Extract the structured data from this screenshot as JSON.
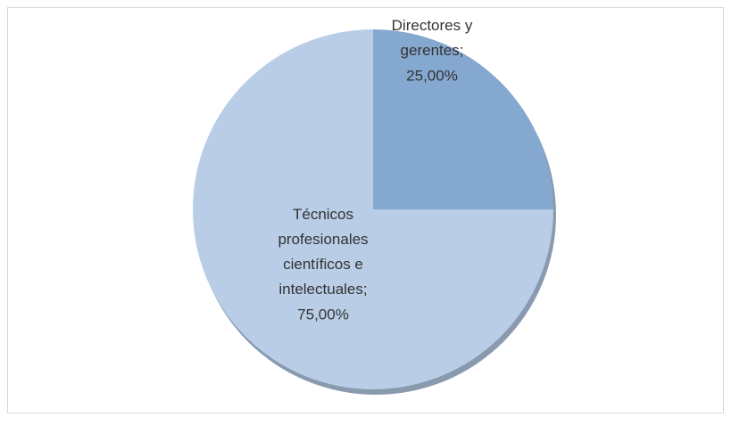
{
  "chart_data": {
    "type": "pie",
    "categories": [
      "Directores y gerentes",
      "Técnicos profesionales científicos e intelectuales"
    ],
    "values": [
      25,
      75
    ],
    "value_labels": [
      "25,00%",
      "75,00%"
    ],
    "label_separator": ";",
    "colors": [
      "#84a8cf",
      "#b9cde7"
    ]
  }
}
